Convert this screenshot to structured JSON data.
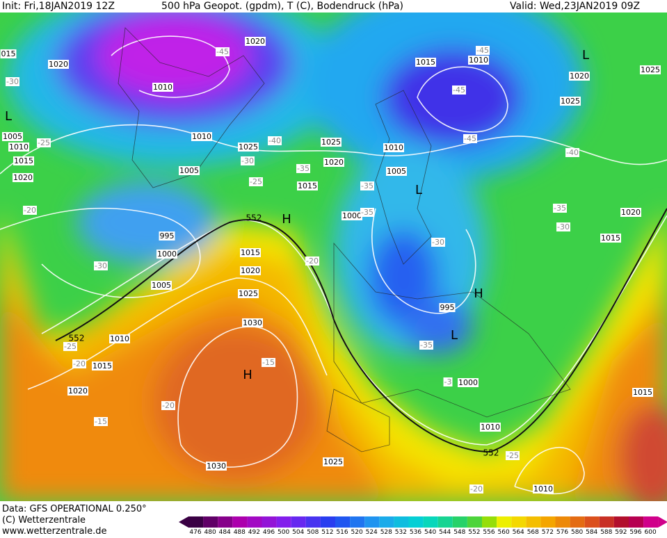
{
  "header": {
    "init": "Init: Fri,18JAN2019 12Z",
    "title": "500 hPa Geopot. (gpdm), T (C), Bodendruck (hPa)",
    "valid": "Valid: Wed,23JAN2019 09Z"
  },
  "footer": {
    "data": "Data: GFS OPERATIONAL 0.250°",
    "copyright": "(C) Wetterzentrale",
    "url": "www.wetterzentrale.de"
  },
  "colorbar": {
    "ticks": [
      476,
      480,
      484,
      488,
      492,
      496,
      500,
      504,
      508,
      512,
      516,
      520,
      524,
      528,
      532,
      536,
      540,
      544,
      548,
      552,
      556,
      560,
      564,
      568,
      572,
      576,
      580,
      584,
      588,
      592,
      596,
      600
    ]
  },
  "pressure_labels": [
    "015",
    "1020",
    "1010",
    "1020",
    "1015",
    "1010",
    "1025",
    "1020",
    "1025",
    "1005",
    "1010",
    "1015",
    "1020",
    "1010",
    "1025",
    "1025",
    "1020",
    "1010",
    "1005",
    "1005",
    "1015",
    "1000",
    "995",
    "1000",
    "1015",
    "1020",
    "1025",
    "1005",
    "1020",
    "1015",
    "995",
    "1010",
    "1015",
    "1030",
    "1020",
    "1000",
    "1015",
    "1010",
    "1030",
    "1025",
    "1010"
  ],
  "temperature_labels": [
    "-45",
    "-45",
    "-30",
    "-45",
    "-45",
    "-25",
    "-40",
    "-30",
    "-35",
    "-25",
    "-40",
    "-35",
    "-35",
    "-35",
    "-30",
    "-30",
    "-20",
    "-20",
    "-30",
    "-25",
    "-20",
    "-15",
    "-35",
    "-3",
    "-20",
    "-15",
    "-25",
    "-20"
  ],
  "pressure_centers": [
    "H",
    "H",
    "H",
    "L",
    "L",
    "L",
    "L"
  ],
  "contour_labels": [
    "552",
    "552",
    "552"
  ]
}
